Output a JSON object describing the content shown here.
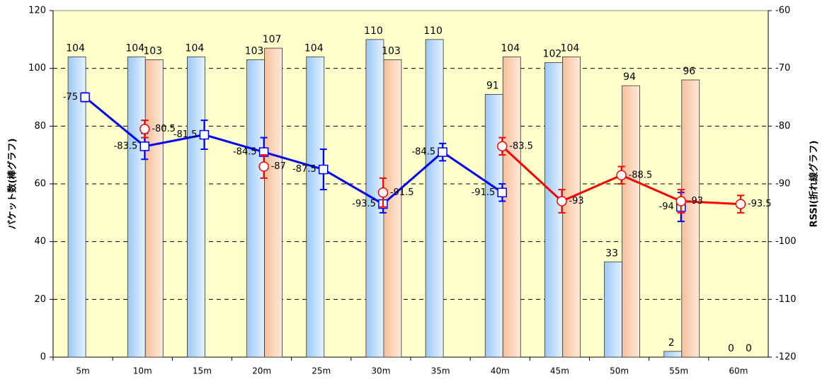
{
  "chart_data": {
    "type": "bar_line",
    "y_label": "パケット数(棒グラフ)",
    "y2_label": "RSSI(折れ線グラフ)",
    "categories": [
      "5m",
      "10m",
      "15m",
      "20m",
      "25m",
      "30m",
      "35m",
      "40m",
      "45m",
      "50m",
      "55m",
      "60m"
    ],
    "ylim": [
      0,
      120
    ],
    "yticks": [
      0,
      20,
      40,
      60,
      80,
      100,
      120
    ],
    "y2lim": [
      -120,
      -60
    ],
    "y2ticks": [
      -120,
      -110,
      -100,
      -90,
      -80,
      -70,
      -60
    ],
    "grid": true,
    "bars": [
      {
        "color": "#a8d0f8",
        "values": [
          104,
          104,
          104,
          103,
          104,
          110,
          110,
          91,
          102,
          33,
          2,
          0
        ]
      },
      {
        "color": "#f8c8a0",
        "values": [
          null,
          103,
          null,
          107,
          null,
          103,
          null,
          104,
          104,
          94,
          96,
          0
        ]
      }
    ],
    "series": [
      {
        "color": "#0000ff",
        "marker": "square",
        "axis": "y2",
        "values": [
          -75,
          -83.5,
          -81.5,
          -84.5,
          -87.5,
          -93.5,
          -84.5,
          -91.5,
          null,
          null,
          -94,
          null
        ],
        "errors": [
          0.75,
          2.25,
          2.5,
          2.5,
          3.5,
          1.5,
          1.5,
          1.5,
          null,
          null,
          2.5,
          null
        ]
      },
      {
        "color": "#ff0000",
        "marker": "circle",
        "axis": "y2",
        "values": [
          null,
          -80.5,
          null,
          -87,
          null,
          -91.5,
          null,
          -83.5,
          -93,
          -88.5,
          -93,
          -93.5
        ],
        "errors": [
          null,
          1.5,
          null,
          2,
          null,
          2.5,
          null,
          1.5,
          2,
          1.5,
          2,
          1.5
        ]
      }
    ]
  }
}
